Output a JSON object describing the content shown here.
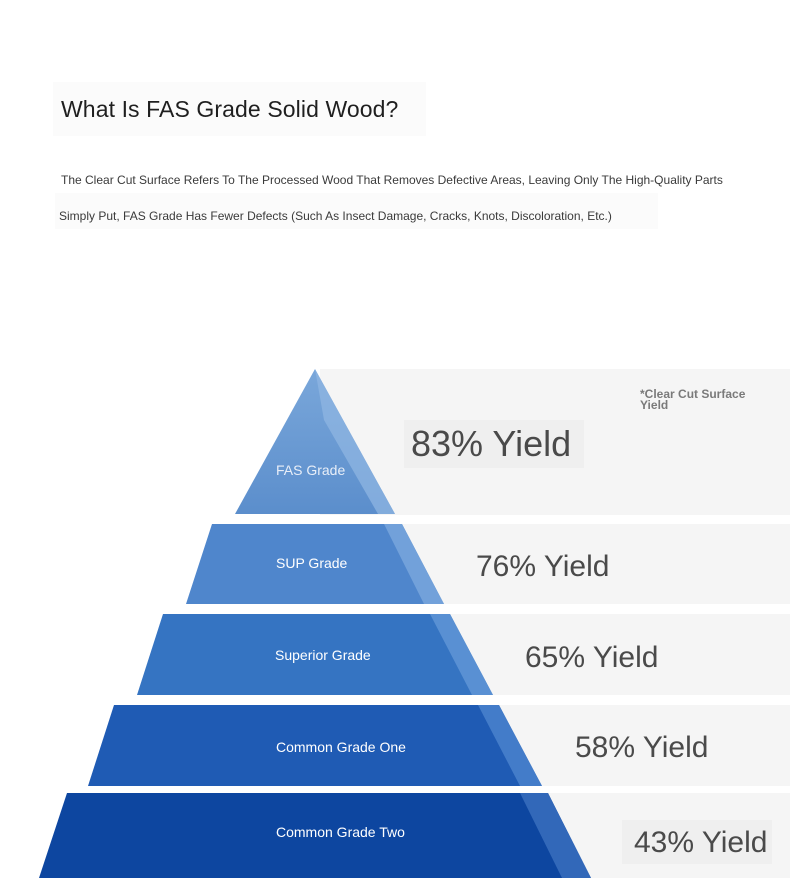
{
  "header": {
    "title": "What Is FAS Grade Solid Wood?"
  },
  "description": {
    "line1": "The Clear Cut Surface Refers To The Processed Wood That Removes Defective Areas, Leaving Only The High-Quality Parts",
    "line2": "Simply Put, FAS Grade Has Fewer Defects (Such As Insect Damage, Cracks, Knots, Discoloration, Etc.)"
  },
  "pyramid": {
    "note": "*Clear Cut Surface Yield",
    "tiers": [
      {
        "label": "FAS Grade",
        "yield_text": "83% Yield",
        "yield_percent": 83,
        "color": "#6b9bd2"
      },
      {
        "label": "SUP Grade",
        "yield_text": "76% Yield",
        "yield_percent": 76,
        "color": "#4f86cc"
      },
      {
        "label": "Superior Grade",
        "yield_text": "65% Yield",
        "yield_percent": 65,
        "color": "#3574c2"
      },
      {
        "label": "Common Grade One",
        "yield_text": "58% Yield",
        "yield_percent": 58,
        "color": "#1f5bb4"
      },
      {
        "label": "Common Grade Two",
        "yield_text": "43% Yield",
        "yield_percent": 43,
        "color": "#0d46a0"
      }
    ]
  }
}
